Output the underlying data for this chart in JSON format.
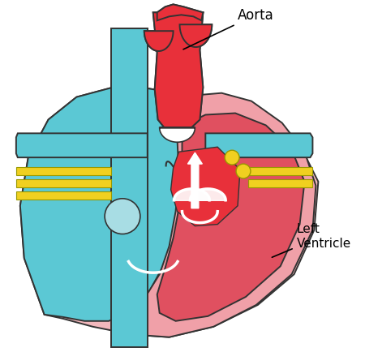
{
  "bg_color": "#ffffff",
  "cyan": "#5BC8D4",
  "red": "#E8303A",
  "pink_outer": "#F2B8BC",
  "pink_inner": "#F0A0A8",
  "red_inner": "#E05060",
  "yellow": "#F0D020",
  "white": "#ffffff",
  "outline": "#333333",
  "label_aorta": "Aorta",
  "label_ventricle": "Left\nVentricle",
  "figsize": [
    4.5,
    4.35
  ],
  "dpi": 100
}
